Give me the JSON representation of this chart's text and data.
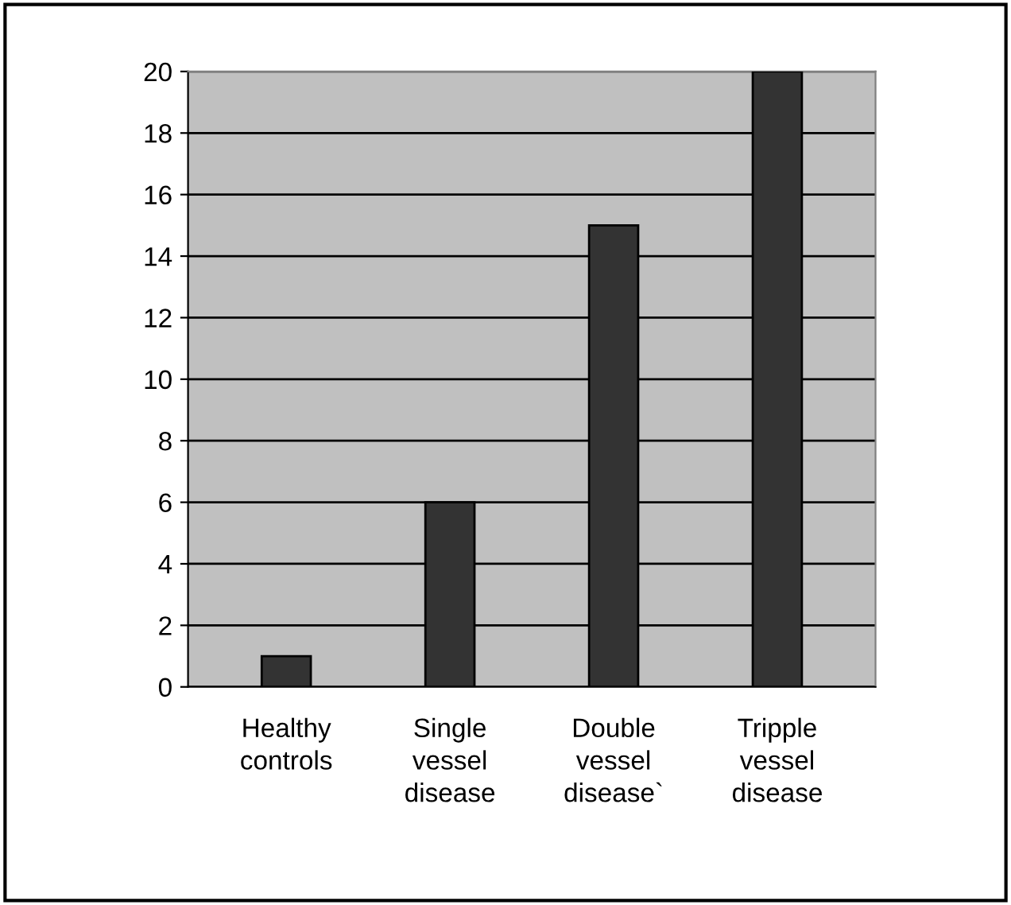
{
  "chart_data": {
    "type": "bar",
    "categories": [
      "Healthy\ncontrols",
      "Single\nvessel\ndisease",
      "Double\nvessel\ndisease`",
      "Tripple\nvessel\ndisease"
    ],
    "values": [
      1,
      6,
      15,
      20
    ],
    "color": "#333333",
    "ylim": [
      0,
      20
    ],
    "yticks": [
      0,
      2,
      4,
      6,
      8,
      10,
      12,
      14,
      16,
      18,
      20
    ],
    "grid": "y",
    "legend": false
  }
}
